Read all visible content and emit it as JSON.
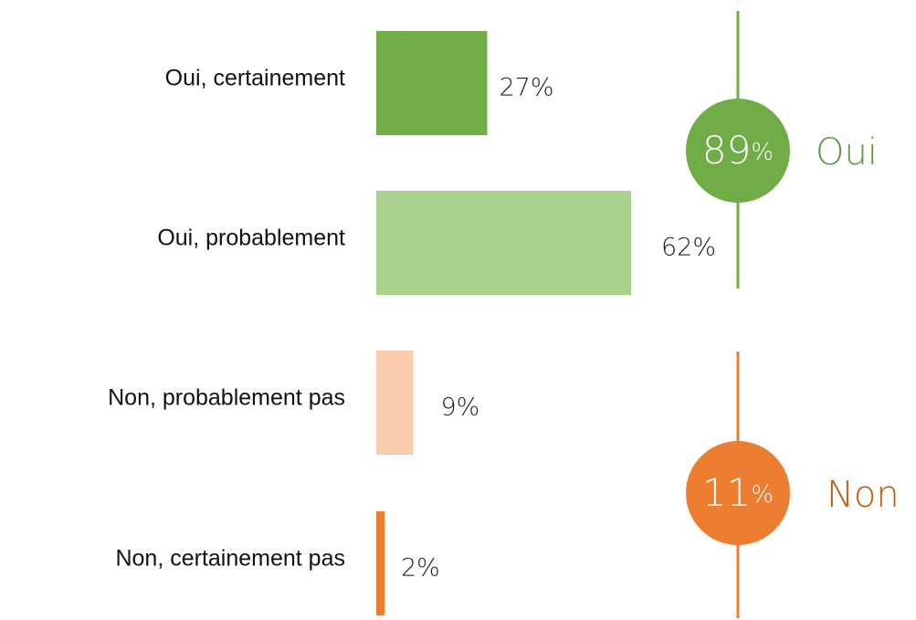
{
  "chart_data": {
    "type": "bar",
    "orientation": "horizontal",
    "categories": [
      "Oui, certainement",
      "Oui, probablement",
      "Non, probablement pas",
      "Non, certainement pas"
    ],
    "values": [
      27,
      62,
      9,
      2
    ],
    "value_labels": [
      "27%",
      "62%",
      "9%",
      "2%"
    ],
    "colors": [
      "#70ad47",
      "#a9d18e",
      "#f8cbad",
      "#ed7d31"
    ],
    "summaries": [
      {
        "value": 89,
        "unit": "%",
        "label": "Oui",
        "color": "#70ad47",
        "text_color": "#5e9a3a"
      },
      {
        "value": 11,
        "unit": "%",
        "label": "Non",
        "color": "#ed7d31",
        "text_color": "#c55a11"
      }
    ]
  }
}
